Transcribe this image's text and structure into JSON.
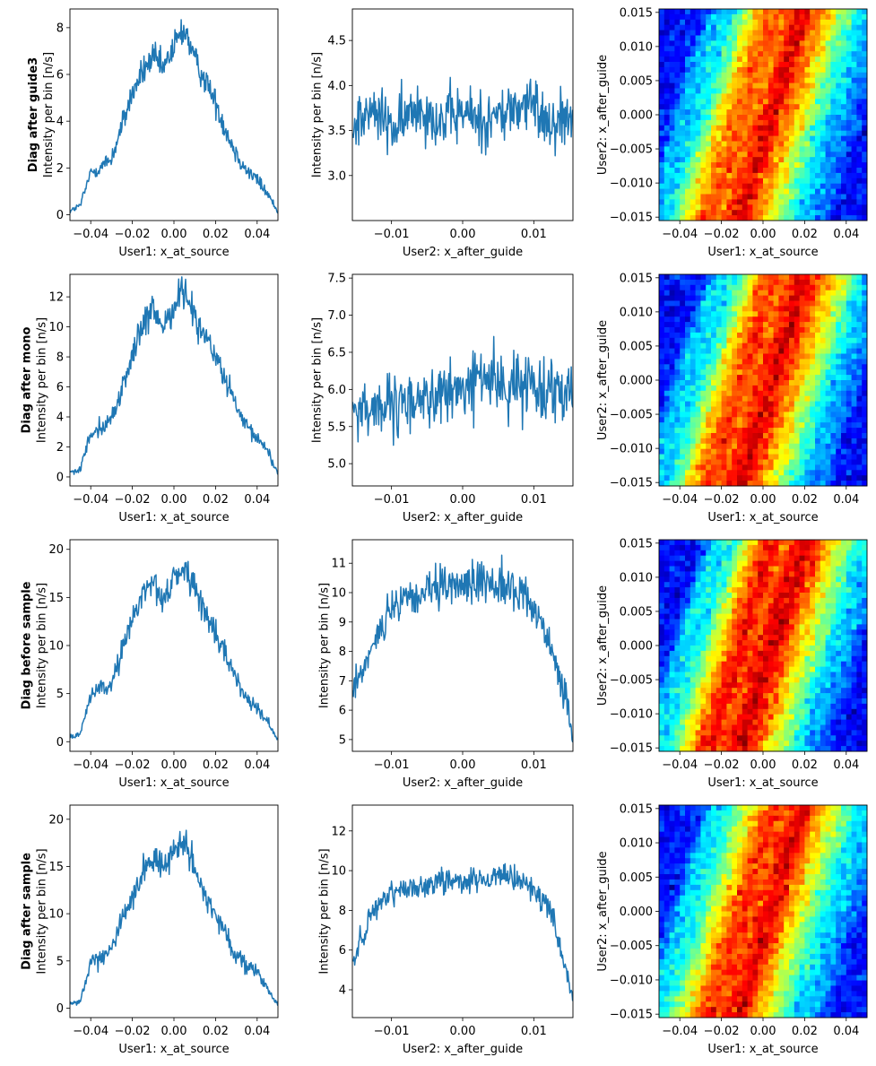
{
  "figure": {
    "rows": [
      {
        "label": "Diag after guide3"
      },
      {
        "label": "Diag after mono"
      },
      {
        "label": "Diag before sample"
      },
      {
        "label": "Diag after sample"
      }
    ],
    "colormap": "jet",
    "line_color": "#1f77b4"
  },
  "chart_data": [
    {
      "type": "line",
      "row": 0,
      "xlabel": "User1: x_at_source",
      "ylabel": "Intensity per bin [n/s]",
      "xlim": [
        -0.05,
        0.05
      ],
      "ylim": [
        -0.25,
        8.8
      ],
      "xticks": [
        -0.04,
        -0.02,
        0.0,
        0.02,
        0.04
      ],
      "xtick_labels": [
        "−0.04",
        "−0.02",
        "0.00",
        "0.02",
        "0.04"
      ],
      "yticks": [
        0,
        2,
        4,
        6,
        8
      ],
      "ytick_labels": [
        "0",
        "2",
        "4",
        "6",
        "8"
      ],
      "series": [
        {
          "x": [
            -0.05,
            -0.045,
            -0.04,
            -0.035,
            -0.03,
            -0.025,
            -0.02,
            -0.015,
            -0.01,
            -0.005,
            0.0,
            0.005,
            0.01,
            0.015,
            0.02,
            0.025,
            0.03,
            0.035,
            0.04,
            0.045,
            0.05
          ],
          "values": [
            0.15,
            0.4,
            1.8,
            2.05,
            2.4,
            3.8,
            5.2,
            6.1,
            6.7,
            6.2,
            7.2,
            8.0,
            6.6,
            5.8,
            4.8,
            3.6,
            2.6,
            1.9,
            1.5,
            0.9,
            0.1
          ]
        }
      ]
    },
    {
      "type": "line",
      "row": 0,
      "xlabel": "User2: x_after_guide",
      "ylabel": "Intensity per bin [n/s]",
      "xlim": [
        -0.0155,
        0.0155
      ],
      "ylim": [
        2.5,
        4.85
      ],
      "xticks": [
        -0.01,
        0.0,
        0.01
      ],
      "xtick_labels": [
        "−0.01",
        "0.00",
        "0.01"
      ],
      "yticks": [
        3.0,
        3.5,
        4.0,
        4.5
      ],
      "ytick_labels": [
        "3.0",
        "3.5",
        "4.0",
        "4.5"
      ],
      "series": [
        {
          "x": [
            -0.0155,
            -0.0124,
            -0.0093,
            -0.0062,
            -0.0031,
            0.0,
            0.0031,
            0.0062,
            0.0093,
            0.0124,
            0.0155
          ],
          "values": [
            3.6,
            3.7,
            3.5,
            3.8,
            3.6,
            3.7,
            3.6,
            3.7,
            3.8,
            3.6,
            3.7
          ]
        }
      ]
    },
    {
      "type": "heatmap",
      "row": 0,
      "xlabel": "User1: x_at_source",
      "ylabel": "User2: x_after_guide",
      "xlim": [
        -0.05,
        0.05
      ],
      "ylim": [
        -0.0155,
        0.0155
      ],
      "xticks": [
        -0.04,
        -0.02,
        0.0,
        0.02,
        0.04
      ],
      "xtick_labels": [
        "−0.04",
        "−0.02",
        "0.00",
        "0.02",
        "0.04"
      ],
      "yticks": [
        -0.015,
        -0.01,
        -0.005,
        0.0,
        0.005,
        0.01,
        0.015
      ],
      "ytick_labels": [
        "−0.015",
        "−0.010",
        "−0.005",
        "0.000",
        "0.005",
        "0.010",
        "0.015"
      ]
    },
    {
      "type": "line",
      "row": 1,
      "xlabel": "User1: x_at_source",
      "ylabel": "Intensity per bin [n/s]",
      "xlim": [
        -0.05,
        0.05
      ],
      "ylim": [
        -0.6,
        13.5
      ],
      "xticks": [
        -0.04,
        -0.02,
        0.0,
        0.02,
        0.04
      ],
      "xtick_labels": [
        "−0.04",
        "−0.02",
        "0.00",
        "0.02",
        "0.04"
      ],
      "yticks": [
        0,
        2,
        4,
        6,
        8,
        10,
        12
      ],
      "ytick_labels": [
        "0",
        "2",
        "4",
        "6",
        "8",
        "10",
        "12"
      ],
      "series": [
        {
          "x": [
            -0.05,
            -0.045,
            -0.04,
            -0.035,
            -0.03,
            -0.025,
            -0.02,
            -0.015,
            -0.01,
            -0.005,
            0.0,
            0.005,
            0.01,
            0.015,
            0.02,
            0.025,
            0.03,
            0.035,
            0.04,
            0.045,
            0.05
          ],
          "values": [
            0.3,
            0.5,
            3.0,
            3.4,
            3.8,
            5.8,
            8.2,
            10.0,
            11.0,
            10.0,
            11.5,
            12.5,
            10.8,
            9.4,
            8.0,
            6.4,
            4.6,
            3.2,
            2.6,
            1.8,
            0.2
          ]
        }
      ]
    },
    {
      "type": "line",
      "row": 1,
      "xlabel": "User2: x_after_guide",
      "ylabel": "Intensity per bin [n/s]",
      "xlim": [
        -0.0155,
        0.0155
      ],
      "ylim": [
        4.7,
        7.55
      ],
      "xticks": [
        -0.01,
        0.0,
        0.01
      ],
      "xtick_labels": [
        "−0.01",
        "0.00",
        "0.01"
      ],
      "yticks": [
        5.0,
        5.5,
        6.0,
        6.5,
        7.0,
        7.5
      ],
      "ytick_labels": [
        "5.0",
        "5.5",
        "6.0",
        "6.5",
        "7.0",
        "7.5"
      ],
      "series": [
        {
          "x": [
            -0.0155,
            -0.0124,
            -0.0093,
            -0.0062,
            -0.0031,
            0.0,
            0.0031,
            0.0062,
            0.0093,
            0.0124,
            0.0155
          ],
          "values": [
            5.7,
            5.8,
            5.7,
            5.9,
            5.9,
            6.0,
            6.2,
            6.0,
            6.1,
            6.0,
            6.1
          ]
        }
      ]
    },
    {
      "type": "heatmap",
      "row": 1,
      "xlabel": "User1: x_at_source",
      "ylabel": "User2: x_after_guide",
      "xlim": [
        -0.05,
        0.05
      ],
      "ylim": [
        -0.0155,
        0.0155
      ],
      "xticks": [
        -0.04,
        -0.02,
        0.0,
        0.02,
        0.04
      ],
      "xtick_labels": [
        "−0.04",
        "−0.02",
        "0.00",
        "0.02",
        "0.04"
      ],
      "yticks": [
        -0.015,
        -0.01,
        -0.005,
        0.0,
        0.005,
        0.01,
        0.015
      ],
      "ytick_labels": [
        "−0.015",
        "−0.010",
        "−0.005",
        "0.000",
        "0.005",
        "0.010",
        "0.015"
      ]
    },
    {
      "type": "line",
      "row": 2,
      "xlabel": "User1: x_at_source",
      "ylabel": "Intensity per bin [n/s]",
      "xlim": [
        -0.05,
        0.05
      ],
      "ylim": [
        -1.0,
        21.0
      ],
      "xticks": [
        -0.04,
        -0.02,
        0.0,
        0.02,
        0.04
      ],
      "xtick_labels": [
        "−0.04",
        "−0.02",
        "0.00",
        "0.02",
        "0.04"
      ],
      "yticks": [
        0,
        5,
        10,
        15,
        20
      ],
      "ytick_labels": [
        "0",
        "5",
        "10",
        "15",
        "20"
      ],
      "series": [
        {
          "x": [
            -0.05,
            -0.045,
            -0.04,
            -0.035,
            -0.03,
            -0.025,
            -0.02,
            -0.015,
            -0.01,
            -0.005,
            0.0,
            0.005,
            0.01,
            0.015,
            0.02,
            0.025,
            0.03,
            0.035,
            0.04,
            0.045,
            0.05
          ],
          "values": [
            0.4,
            0.8,
            5.0,
            5.4,
            6.0,
            9.5,
            12.5,
            15.5,
            17.0,
            14.5,
            17.0,
            18.0,
            16.0,
            13.5,
            11.0,
            9.0,
            6.5,
            4.5,
            3.8,
            2.0,
            0.2
          ]
        }
      ]
    },
    {
      "type": "line",
      "row": 2,
      "xlabel": "User2: x_after_guide",
      "ylabel": "Intensity per bin [n/s]",
      "xlim": [
        -0.0155,
        0.0155
      ],
      "ylim": [
        4.6,
        11.8
      ],
      "xticks": [
        -0.01,
        0.0,
        0.01
      ],
      "xtick_labels": [
        "−0.01",
        "0.00",
        "0.01"
      ],
      "yticks": [
        5,
        6,
        7,
        8,
        9,
        10,
        11
      ],
      "ytick_labels": [
        "5",
        "6",
        "7",
        "8",
        "9",
        "10",
        "11"
      ],
      "series": [
        {
          "x": [
            -0.0155,
            -0.0124,
            -0.0093,
            -0.0062,
            -0.0031,
            0.0,
            0.0031,
            0.0062,
            0.0093,
            0.0124,
            0.0155
          ],
          "values": [
            6.5,
            8.5,
            9.5,
            9.9,
            10.1,
            10.3,
            10.4,
            10.2,
            9.8,
            8.3,
            5.2
          ]
        }
      ]
    },
    {
      "type": "heatmap",
      "row": 2,
      "xlabel": "User1: x_at_source",
      "ylabel": "User2: x_after_guide",
      "xlim": [
        -0.05,
        0.05
      ],
      "ylim": [
        -0.0155,
        0.0155
      ],
      "xticks": [
        -0.04,
        -0.02,
        0.0,
        0.02,
        0.04
      ],
      "xtick_labels": [
        "−0.04",
        "−0.02",
        "0.00",
        "0.02",
        "0.04"
      ],
      "yticks": [
        -0.015,
        -0.01,
        -0.005,
        0.0,
        0.005,
        0.01,
        0.015
      ],
      "ytick_labels": [
        "−0.015",
        "−0.010",
        "−0.005",
        "0.000",
        "0.005",
        "0.010",
        "0.015"
      ]
    },
    {
      "type": "line",
      "row": 3,
      "xlabel": "User1: x_at_source",
      "ylabel": "Intensity per bin [n/s]",
      "xlim": [
        -0.05,
        0.05
      ],
      "ylim": [
        -1.0,
        21.5
      ],
      "xticks": [
        -0.04,
        -0.02,
        0.0,
        0.02,
        0.04
      ],
      "xtick_labels": [
        "−0.04",
        "−0.02",
        "0.00",
        "0.02",
        "0.04"
      ],
      "yticks": [
        0,
        5,
        10,
        15,
        20
      ],
      "ytick_labels": [
        "0",
        "5",
        "10",
        "15",
        "20"
      ],
      "series": [
        {
          "x": [
            -0.05,
            -0.045,
            -0.04,
            -0.035,
            -0.03,
            -0.025,
            -0.02,
            -0.015,
            -0.01,
            -0.005,
            0.0,
            0.005,
            0.01,
            0.015,
            0.02,
            0.025,
            0.03,
            0.035,
            0.04,
            0.045,
            0.05
          ],
          "values": [
            0.4,
            0.8,
            4.8,
            5.2,
            6.5,
            9.5,
            11.5,
            14.5,
            16.0,
            15.0,
            16.5,
            18.0,
            14.5,
            12.0,
            10.0,
            8.0,
            5.5,
            4.5,
            3.8,
            2.0,
            0.3
          ]
        }
      ]
    },
    {
      "type": "line",
      "row": 3,
      "xlabel": "User2: x_after_guide",
      "ylabel": "Intensity per bin [n/s]",
      "xlim": [
        -0.0155,
        0.0155
      ],
      "ylim": [
        2.6,
        13.3
      ],
      "xticks": [
        -0.01,
        0.0,
        0.01
      ],
      "xtick_labels": [
        "−0.01",
        "0.00",
        "0.01"
      ],
      "yticks": [
        4,
        6,
        8,
        10,
        12
      ],
      "ytick_labels": [
        "4",
        "6",
        "8",
        "10",
        "12"
      ],
      "series": [
        {
          "x": [
            -0.0155,
            -0.0124,
            -0.0093,
            -0.0062,
            -0.0031,
            0.0,
            0.0031,
            0.0062,
            0.0093,
            0.0124,
            0.0155
          ],
          "values": [
            5.5,
            8.0,
            9.0,
            9.2,
            9.5,
            9.6,
            9.5,
            9.6,
            9.3,
            8.0,
            3.5
          ]
        }
      ]
    },
    {
      "type": "heatmap",
      "row": 3,
      "xlabel": "User1: x_at_source",
      "ylabel": "User2: x_after_guide",
      "xlim": [
        -0.05,
        0.05
      ],
      "ylim": [
        -0.0155,
        0.0155
      ],
      "xticks": [
        -0.04,
        -0.02,
        0.0,
        0.02,
        0.04
      ],
      "xtick_labels": [
        "−0.04",
        "−0.02",
        "0.00",
        "0.02",
        "0.04"
      ],
      "yticks": [
        -0.015,
        -0.01,
        -0.005,
        0.0,
        0.005,
        0.01,
        0.015
      ],
      "ytick_labels": [
        "−0.015",
        "−0.010",
        "−0.005",
        "0.000",
        "0.005",
        "0.010",
        "0.015"
      ]
    }
  ]
}
